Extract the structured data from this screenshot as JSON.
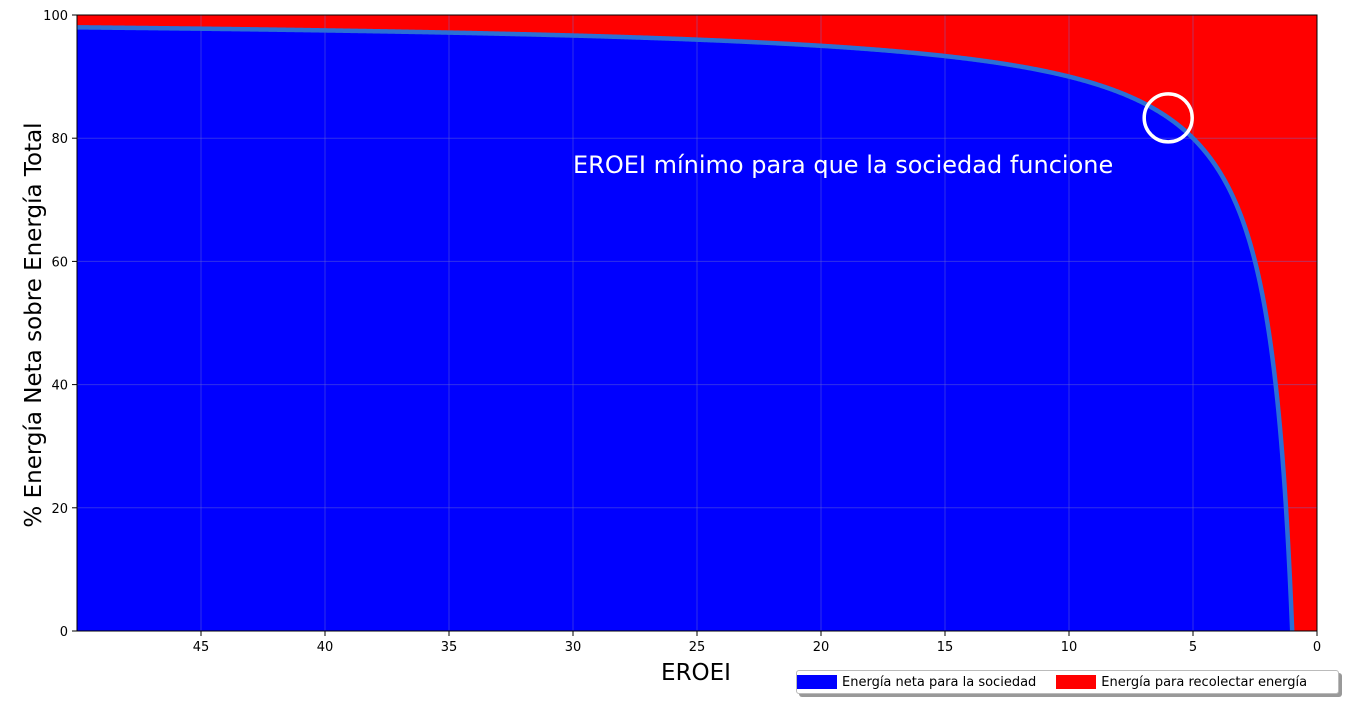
{
  "chart_data": {
    "type": "area",
    "xlabel": "EROEI",
    "ylabel": "% Energía Neta sobre Energía Total",
    "xlim": [
      50,
      0
    ],
    "ylim": [
      0,
      100
    ],
    "x_inverted": true,
    "xticks": [
      45,
      40,
      35,
      30,
      25,
      20,
      15,
      10,
      5,
      0
    ],
    "yticks": [
      0,
      20,
      40,
      60,
      80,
      100
    ],
    "grid": true,
    "legend_placement": "bottom-right, below plot",
    "series": [
      {
        "name": "Energía neta para la sociedad",
        "color": "#0000ff",
        "curve_color": "#2b6fd6",
        "formula": "100 * (1 - 1/EROEI)",
        "x": [
          50,
          45,
          40,
          35,
          30,
          25,
          20,
          15,
          10,
          8,
          6,
          5,
          4,
          3,
          2,
          1.5,
          1.2,
          1
        ],
        "values": [
          98,
          97.8,
          97.5,
          97.1,
          96.7,
          96,
          95,
          93.3,
          90,
          87.5,
          83.3,
          80,
          75,
          66.7,
          50,
          33.3,
          16.7,
          0
        ]
      },
      {
        "name": "Energía para recolectar energía",
        "color": "#ff0000",
        "values": [
          2,
          2.2,
          2.5,
          2.9,
          3.3,
          4,
          5,
          6.7,
          10,
          12.5,
          16.7,
          20,
          25,
          33.3,
          50,
          66.7,
          83.3,
          100
        ]
      }
    ],
    "annotations": [
      {
        "text": "EROEI mínimo para que la sociedad funcione",
        "x": 30,
        "y": 75,
        "color": "#ffffff"
      },
      {
        "marker": "circle",
        "x": 6,
        "y": 83.3,
        "color": "#ffffff"
      }
    ]
  }
}
